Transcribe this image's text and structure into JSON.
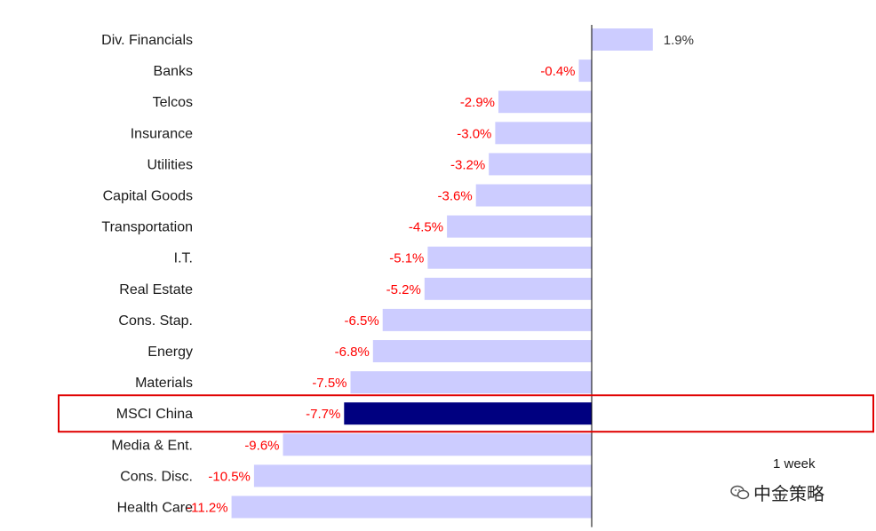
{
  "chart_data": {
    "type": "bar",
    "orientation": "horizontal",
    "categories": [
      "Div. Financials",
      "Banks",
      "Telcos",
      "Insurance",
      "Utilities",
      "Capital Goods",
      "Transportation",
      "I.T.",
      "Real Estate",
      "Cons. Stap.",
      "Energy",
      "Materials",
      "MSCI China",
      "Media & Ent.",
      "Cons. Disc.",
      "Health Care"
    ],
    "values": [
      1.9,
      -0.4,
      -2.9,
      -3.0,
      -3.2,
      -3.6,
      -4.5,
      -5.1,
      -5.2,
      -6.5,
      -6.8,
      -7.5,
      -7.7,
      -9.6,
      -10.5,
      -11.2
    ],
    "value_labels": [
      "1.9%",
      "-0.4%",
      "-2.9%",
      "-3.0%",
      "-3.2%",
      "-3.6%",
      "-4.5%",
      "-5.1%",
      "-5.2%",
      "-6.5%",
      "-6.8%",
      "-7.5%",
      "-7.7%",
      "-9.6%",
      "-10.5%",
      "-11.2%"
    ],
    "series": [
      {
        "name": "1 week",
        "values": [
          1.9,
          -0.4,
          -2.9,
          -3.0,
          -3.2,
          -3.6,
          -4.5,
          -5.1,
          -5.2,
          -6.5,
          -6.8,
          -7.5,
          -7.7,
          -9.6,
          -10.5,
          -11.2
        ]
      }
    ],
    "highlight_category": "MSCI China",
    "title": "",
    "xlabel": "",
    "ylabel": "",
    "legend_position": "bottom-right",
    "grid": false,
    "colors": {
      "bar": "#ccccff",
      "highlight_bar": "#000080",
      "negative_label": "#ff0000",
      "positive_label": "#333333",
      "highlight_box": "#e00000",
      "axis": "#000000"
    }
  },
  "legend": {
    "label": "1 week"
  },
  "watermark": {
    "text": "中金策略",
    "icon": "wechat-icon"
  }
}
